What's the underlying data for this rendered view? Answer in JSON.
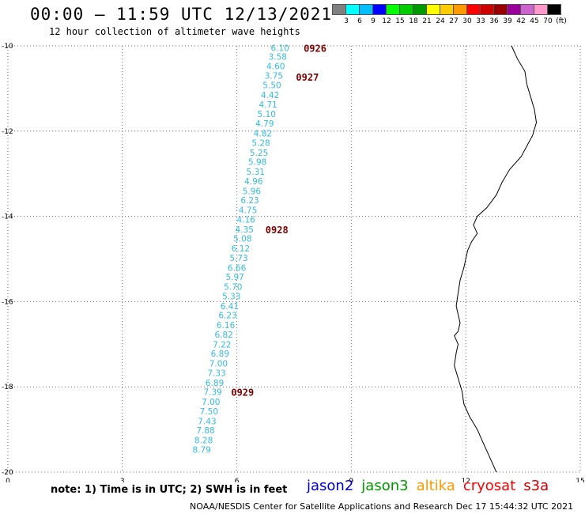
{
  "header": {
    "title": "00:00 – 11:59 UTC 12/13/2021",
    "subtitle": "12 hour collection of altimeter wave heights"
  },
  "colorbar": {
    "colors": [
      "#808080",
      "#00ffff",
      "#00bfff",
      "#0000ff",
      "#00ff00",
      "#00cc00",
      "#009900",
      "#ffff00",
      "#ffcc00",
      "#ff9900",
      "#ff0000",
      "#cc0000",
      "#990000",
      "#990099",
      "#cc66cc",
      "#ff99cc",
      "#000000"
    ],
    "labels": [
      "3",
      "6",
      "9",
      "12",
      "15",
      "18",
      "21",
      "24",
      "27",
      "30",
      "33",
      "36",
      "39",
      "42",
      "45",
      "70",
      "(ft)"
    ]
  },
  "map": {
    "xlim": [
      0,
      15
    ],
    "ylim": [
      -20,
      -10
    ],
    "x_ticks": [
      "0",
      "3",
      "6",
      "9",
      "12",
      "15"
    ],
    "y_ticks": [
      "-10",
      "-12",
      "-14",
      "-16",
      "-18",
      "-20"
    ],
    "wave_color": "#33bbdd",
    "time_color": "#800000",
    "track_points": [
      {
        "lon": 7.13,
        "lat": -10.05,
        "swh": "6.10"
      },
      {
        "lon": 7.07,
        "lat": -10.25,
        "swh": "3.58"
      },
      {
        "lon": 7.02,
        "lat": -10.47,
        "swh": "4.60"
      },
      {
        "lon": 6.97,
        "lat": -10.7,
        "swh": "3.75"
      },
      {
        "lon": 6.92,
        "lat": -10.92,
        "swh": "5.50"
      },
      {
        "lon": 6.87,
        "lat": -11.15,
        "swh": "4.42"
      },
      {
        "lon": 6.82,
        "lat": -11.37,
        "swh": "4.71"
      },
      {
        "lon": 6.78,
        "lat": -11.6,
        "swh": "5.10"
      },
      {
        "lon": 6.73,
        "lat": -11.82,
        "swh": "4.79"
      },
      {
        "lon": 6.68,
        "lat": -12.05,
        "swh": "4.82"
      },
      {
        "lon": 6.63,
        "lat": -12.27,
        "swh": "5.28"
      },
      {
        "lon": 6.58,
        "lat": -12.5,
        "swh": "5.25"
      },
      {
        "lon": 6.54,
        "lat": -12.72,
        "swh": "5.98"
      },
      {
        "lon": 6.49,
        "lat": -12.95,
        "swh": "5.31"
      },
      {
        "lon": 6.44,
        "lat": -13.17,
        "swh": "4.96"
      },
      {
        "lon": 6.39,
        "lat": -13.4,
        "swh": "5.96"
      },
      {
        "lon": 6.34,
        "lat": -13.62,
        "swh": "6.23"
      },
      {
        "lon": 6.29,
        "lat": -13.85,
        "swh": "4.75"
      },
      {
        "lon": 6.24,
        "lat": -14.07,
        "swh": "4.16"
      },
      {
        "lon": 6.2,
        "lat": -14.3,
        "swh": "4.35"
      },
      {
        "lon": 6.15,
        "lat": -14.52,
        "swh": "5.08"
      },
      {
        "lon": 6.1,
        "lat": -14.75,
        "swh": "6.12"
      },
      {
        "lon": 6.05,
        "lat": -14.97,
        "swh": "5.73"
      },
      {
        "lon": 6.0,
        "lat": -15.2,
        "swh": "6.66"
      },
      {
        "lon": 5.95,
        "lat": -15.42,
        "swh": "5.97"
      },
      {
        "lon": 5.9,
        "lat": -15.65,
        "swh": "5.70"
      },
      {
        "lon": 5.86,
        "lat": -15.87,
        "swh": "5.33"
      },
      {
        "lon": 5.81,
        "lat": -16.1,
        "swh": "6.41"
      },
      {
        "lon": 5.76,
        "lat": -16.32,
        "swh": "6.23"
      },
      {
        "lon": 5.71,
        "lat": -16.55,
        "swh": "6.16"
      },
      {
        "lon": 5.66,
        "lat": -16.77,
        "swh": "6.82"
      },
      {
        "lon": 5.61,
        "lat": -17.0,
        "swh": "7.22"
      },
      {
        "lon": 5.56,
        "lat": -17.22,
        "swh": "6.89"
      },
      {
        "lon": 5.52,
        "lat": -17.45,
        "swh": "7.00"
      },
      {
        "lon": 5.47,
        "lat": -17.67,
        "swh": "7.33"
      },
      {
        "lon": 5.42,
        "lat": -17.9,
        "swh": "6.89"
      },
      {
        "lon": 5.37,
        "lat": -18.12,
        "swh": "7.39"
      },
      {
        "lon": 5.32,
        "lat": -18.35,
        "swh": "7.00"
      },
      {
        "lon": 5.27,
        "lat": -18.57,
        "swh": "7.50"
      },
      {
        "lon": 5.22,
        "lat": -18.8,
        "swh": "7.43"
      },
      {
        "lon": 5.18,
        "lat": -19.02,
        "swh": "7.88"
      },
      {
        "lon": 5.13,
        "lat": -19.25,
        "swh": "8.28"
      },
      {
        "lon": 5.08,
        "lat": -19.47,
        "swh": "8.79"
      }
    ],
    "time_labels": [
      {
        "lon": 7.75,
        "lat": -10.05,
        "text": "0926"
      },
      {
        "lon": 7.55,
        "lat": -10.72,
        "text": "0927"
      },
      {
        "lon": 6.75,
        "lat": -14.3,
        "text": "0928"
      },
      {
        "lon": 5.85,
        "lat": -18.12,
        "text": "0929"
      }
    ],
    "coastline": [
      [
        13.2,
        -10.0
      ],
      [
        13.35,
        -10.3
      ],
      [
        13.55,
        -10.6
      ],
      [
        13.6,
        -10.9
      ],
      [
        13.7,
        -11.2
      ],
      [
        13.8,
        -11.5
      ],
      [
        13.85,
        -11.8
      ],
      [
        13.75,
        -12.1
      ],
      [
        13.6,
        -12.35
      ],
      [
        13.45,
        -12.6
      ],
      [
        13.15,
        -12.9
      ],
      [
        12.95,
        -13.2
      ],
      [
        12.8,
        -13.5
      ],
      [
        12.55,
        -13.8
      ],
      [
        12.3,
        -14.0
      ],
      [
        12.2,
        -14.2
      ],
      [
        12.3,
        -14.4
      ],
      [
        12.15,
        -14.6
      ],
      [
        12.05,
        -14.8
      ],
      [
        12.0,
        -15.0
      ],
      [
        11.95,
        -15.2
      ],
      [
        11.85,
        -15.5
      ],
      [
        11.8,
        -15.8
      ],
      [
        11.75,
        -16.1
      ],
      [
        11.8,
        -16.3
      ],
      [
        11.85,
        -16.5
      ],
      [
        11.8,
        -16.7
      ],
      [
        11.7,
        -16.8
      ],
      [
        11.8,
        -17.0
      ],
      [
        11.75,
        -17.2
      ],
      [
        11.7,
        -17.5
      ],
      [
        11.8,
        -17.8
      ],
      [
        11.9,
        -18.1
      ],
      [
        11.95,
        -18.4
      ],
      [
        12.1,
        -18.7
      ],
      [
        12.3,
        -19.0
      ],
      [
        12.45,
        -19.3
      ],
      [
        12.6,
        -19.6
      ],
      [
        12.75,
        -19.9
      ],
      [
        12.8,
        -20.0
      ]
    ]
  },
  "footer": {
    "note": "note: 1) Time is in UTC; 2) SWH is in feet",
    "satellites": [
      {
        "name": "jason2",
        "color": "#0000cc"
      },
      {
        "name": "jason3",
        "color": "#009900"
      },
      {
        "name": "altika",
        "color": "#ff9900"
      },
      {
        "name": "cryosat",
        "color": "#ff0000"
      },
      {
        "name": "s3a",
        "color": "#cc0000"
      }
    ],
    "credit": "NOAA/NESDIS Center for Satellite Applications and Research   Dec 17 15:44:32 UTC 2021"
  }
}
